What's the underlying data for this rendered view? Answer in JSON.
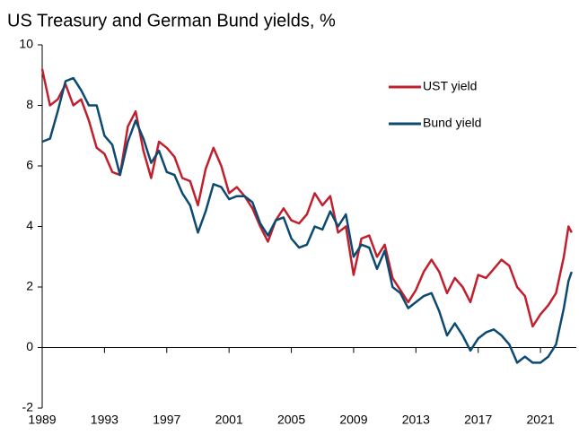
{
  "chart_data": {
    "type": "line",
    "title": "US Treasury and German Bund yields, %",
    "x": [
      1989.0,
      1989.5,
      1990.0,
      1990.5,
      1991.0,
      1991.5,
      1992.0,
      1992.5,
      1993.0,
      1993.5,
      1994.0,
      1994.5,
      1995.0,
      1995.5,
      1996.0,
      1996.5,
      1997.0,
      1997.5,
      1998.0,
      1998.5,
      1999.0,
      1999.5,
      2000.0,
      2000.5,
      2001.0,
      2001.5,
      2002.0,
      2002.5,
      2003.0,
      2003.5,
      2004.0,
      2004.5,
      2005.0,
      2005.5,
      2006.0,
      2006.5,
      2007.0,
      2007.5,
      2008.0,
      2008.5,
      2009.0,
      2009.5,
      2010.0,
      2010.5,
      2011.0,
      2011.5,
      2012.0,
      2012.5,
      2013.0,
      2013.5,
      2014.0,
      2014.5,
      2015.0,
      2015.5,
      2016.0,
      2016.5,
      2017.0,
      2017.5,
      2018.0,
      2018.5,
      2019.0,
      2019.5,
      2020.0,
      2020.5,
      2021.0,
      2021.5,
      2022.0,
      2022.5,
      2022.8,
      2023.0
    ],
    "series": [
      {
        "name": "UST yield",
        "color": "#c0202e",
        "values": [
          9.2,
          8.0,
          8.2,
          8.7,
          8.0,
          8.2,
          7.5,
          6.6,
          6.4,
          5.8,
          5.7,
          7.3,
          7.8,
          6.5,
          5.6,
          6.8,
          6.6,
          6.3,
          5.6,
          5.5,
          4.7,
          5.9,
          6.6,
          6.0,
          5.1,
          5.3,
          5.0,
          4.6,
          4.0,
          3.5,
          4.2,
          4.6,
          4.2,
          4.1,
          4.4,
          5.1,
          4.7,
          5.0,
          3.8,
          4.0,
          2.4,
          3.6,
          3.7,
          3.0,
          3.4,
          2.3,
          1.9,
          1.5,
          1.9,
          2.5,
          2.9,
          2.5,
          1.8,
          2.3,
          2.0,
          1.5,
          2.4,
          2.3,
          2.6,
          2.9,
          2.7,
          2.0,
          1.7,
          0.7,
          1.1,
          1.4,
          1.8,
          3.0,
          4.0,
          3.8
        ]
      },
      {
        "name": "Bund yield",
        "color": "#0d4a72",
        "values": [
          6.8,
          6.9,
          7.8,
          8.8,
          8.9,
          8.5,
          8.0,
          8.0,
          7.0,
          6.7,
          5.7,
          6.8,
          7.5,
          6.9,
          6.1,
          6.5,
          5.8,
          5.7,
          5.1,
          4.7,
          3.8,
          4.5,
          5.4,
          5.3,
          4.9,
          5.0,
          5.0,
          4.8,
          4.1,
          3.7,
          4.2,
          4.3,
          3.6,
          3.3,
          3.4,
          4.0,
          3.9,
          4.5,
          4.0,
          4.4,
          3.0,
          3.4,
          3.3,
          2.6,
          3.2,
          2.0,
          1.8,
          1.3,
          1.5,
          1.7,
          1.8,
          1.2,
          0.4,
          0.8,
          0.4,
          -0.1,
          0.3,
          0.5,
          0.6,
          0.4,
          0.1,
          -0.5,
          -0.3,
          -0.5,
          -0.5,
          -0.3,
          0.1,
          1.3,
          2.2,
          2.5
        ]
      }
    ],
    "xlim": [
      1989,
      2023.3
    ],
    "xticks": [
      1989,
      1993,
      1997,
      2001,
      2005,
      2009,
      2013,
      2017,
      2021
    ],
    "ylim": [
      -2,
      10
    ],
    "yticks": [
      -2,
      0,
      2,
      4,
      6,
      8,
      10
    ]
  }
}
